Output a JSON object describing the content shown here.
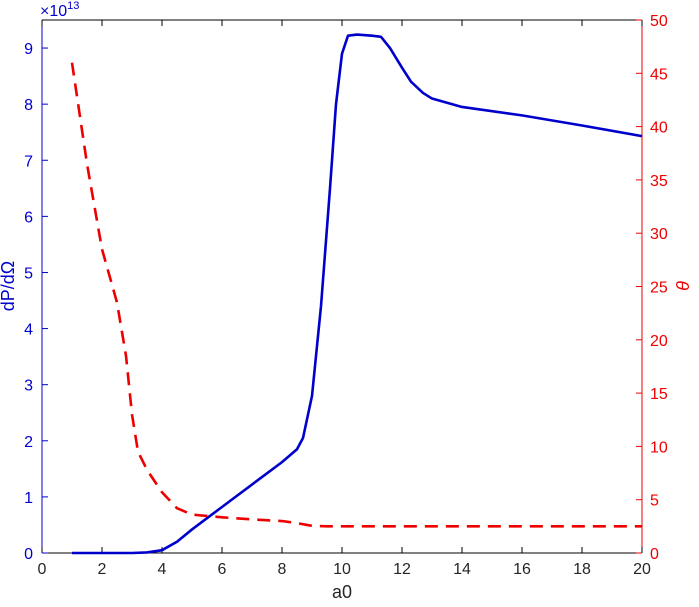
{
  "chart_data": {
    "type": "line",
    "xlabel": "a0",
    "ylabel_left": "dP/dΩ",
    "ylabel_right": "θ",
    "y_left_exponent": "×10",
    "y_left_exponent_power": "13",
    "xlim": [
      0,
      20
    ],
    "ylim_left": [
      0,
      9.5
    ],
    "ylim_right": [
      0,
      50
    ],
    "x_ticks": [
      "0",
      "2",
      "4",
      "6",
      "8",
      "10",
      "12",
      "14",
      "16",
      "18",
      "20"
    ],
    "y_left_ticks": [
      "0",
      "1",
      "2",
      "3",
      "4",
      "5",
      "6",
      "7",
      "8",
      "9"
    ],
    "y_right_ticks": [
      "0",
      "5",
      "10",
      "15",
      "20",
      "25",
      "30",
      "35",
      "40",
      "45",
      "50"
    ],
    "grid": false,
    "colors": {
      "left": "#0000cc",
      "right": "#ee0000",
      "axis": "#000000"
    },
    "series": [
      {
        "axis": "left",
        "style": "solid",
        "x": [
          1.0,
          2.0,
          3.0,
          3.5,
          4.0,
          4.5,
          5.0,
          5.5,
          6.0,
          6.5,
          7.0,
          7.5,
          8.0,
          8.5,
          8.7,
          9.0,
          9.3,
          9.6,
          9.8,
          10.0,
          10.2,
          10.5,
          11.0,
          11.3,
          11.6,
          12.0,
          12.3,
          12.7,
          13.0,
          14.0,
          16.0,
          18.0,
          20.0
        ],
        "values": [
          0.0,
          0.0,
          0.0,
          0.01,
          0.05,
          0.2,
          0.42,
          0.62,
          0.82,
          1.02,
          1.22,
          1.42,
          1.62,
          1.85,
          2.05,
          2.8,
          4.4,
          6.5,
          8.0,
          8.9,
          9.22,
          9.24,
          9.22,
          9.2,
          9.0,
          8.65,
          8.4,
          8.2,
          8.1,
          7.95,
          7.8,
          7.62,
          7.43
        ]
      },
      {
        "axis": "right",
        "style": "dashed",
        "x": [
          1.0,
          1.5,
          2.0,
          2.5,
          2.8,
          3.0,
          3.2,
          3.5,
          4.0,
          4.5,
          5.0,
          6.0,
          7.0,
          8.0,
          8.5,
          9.0,
          9.5,
          10.0,
          12.0,
          14.0,
          16.0,
          18.0,
          20.0
        ],
        "values": [
          46.0,
          36.5,
          28.5,
          23.5,
          18.5,
          13.0,
          9.5,
          7.8,
          5.7,
          4.2,
          3.6,
          3.35,
          3.15,
          3.0,
          2.8,
          2.55,
          2.5,
          2.5,
          2.5,
          2.5,
          2.5,
          2.5,
          2.5
        ]
      }
    ]
  }
}
